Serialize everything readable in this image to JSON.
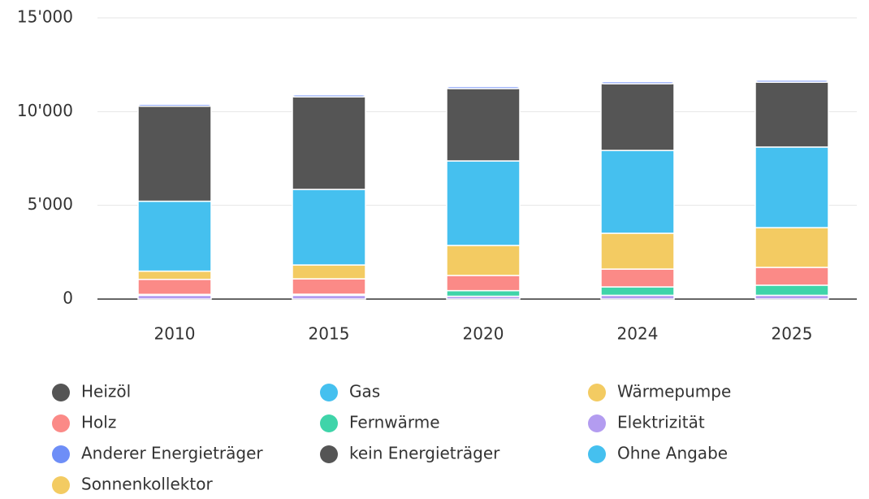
{
  "chart_data": {
    "type": "stacked_bar",
    "categories": [
      "2010",
      "2015",
      "2020",
      "2024",
      "2025"
    ],
    "series": [
      {
        "name": "Heizöl",
        "color": "#555555",
        "values": [
          5070,
          4940,
          3860,
          3560,
          3460
        ]
      },
      {
        "name": "Gas",
        "color": "#45c0ef",
        "values": [
          3730,
          4030,
          4510,
          4420,
          4300
        ]
      },
      {
        "name": "Wärmepumpe",
        "color": "#f3cb62",
        "values": [
          440,
          740,
          1600,
          1910,
          2120
        ]
      },
      {
        "name": "Holz",
        "color": "#fb8a87",
        "values": [
          800,
          820,
          810,
          950,
          950
        ]
      },
      {
        "name": "Fernwärme",
        "color": "#3fd4a9",
        "values": [
          50,
          60,
          300,
          450,
          540
        ]
      },
      {
        "name": "Elektrizität",
        "color": "#b39cf0",
        "values": [
          200,
          200,
          150,
          200,
          200
        ]
      },
      {
        "name": "Anderer Energieträger",
        "color": "#6e8ef7",
        "values": [
          100,
          100,
          100,
          100,
          100
        ]
      },
      {
        "name": "kein Energieträger",
        "color": "#555555",
        "values": [
          0,
          0,
          0,
          0,
          0
        ]
      },
      {
        "name": "Ohne Angabe",
        "color": "#45c0ef",
        "values": [
          0,
          0,
          0,
          0,
          0
        ]
      },
      {
        "name": "Sonnenkollektor",
        "color": "#f3cb62",
        "values": [
          0,
          0,
          0,
          0,
          0
        ]
      }
    ],
    "ylim": [
      0,
      15000
    ],
    "yticks": [
      0,
      {
        "value": 5000,
        "label": "5'000"
      },
      {
        "value": 10000,
        "label": "10'000"
      },
      {
        "value": 15000,
        "label": "15'000"
      }
    ],
    "grid": true
  }
}
